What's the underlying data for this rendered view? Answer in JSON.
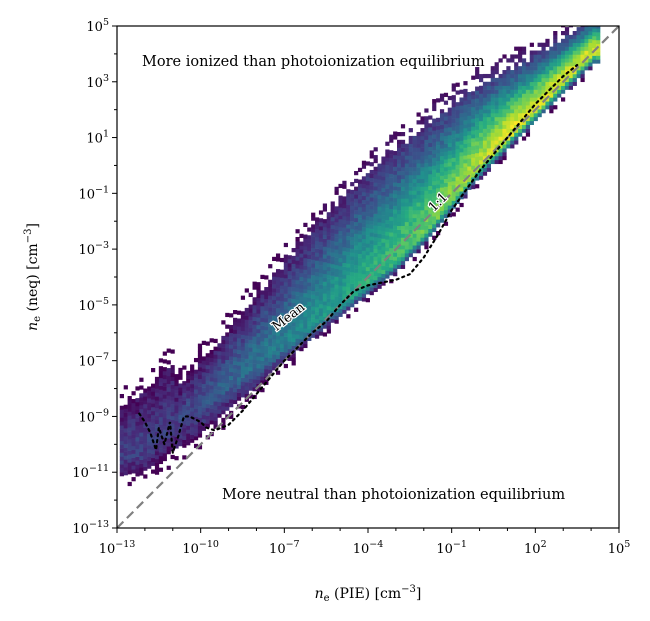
{
  "chart_data": {
    "type": "heatmap",
    "title": "",
    "xlabel": {
      "symbol": "n",
      "subscript": "e",
      "rest": " (PIE) [cm",
      "unit_exp": "−3",
      "close": "]"
    },
    "ylabel": {
      "symbol": "n",
      "subscript": "e",
      "rest": " (neq) [cm",
      "unit_exp": "−3",
      "close": "]"
    },
    "x_scale": "log",
    "y_scale": "log",
    "xlim_log10": [
      -13,
      5
    ],
    "ylim_log10": [
      -13,
      5
    ],
    "x_ticks": [
      {
        "value": -13,
        "base": "10",
        "exp": "−13"
      },
      {
        "value": -10,
        "base": "10",
        "exp": "−10"
      },
      {
        "value": -7,
        "base": "10",
        "exp": "−7"
      },
      {
        "value": -4,
        "base": "10",
        "exp": "−4"
      },
      {
        "value": -1,
        "base": "10",
        "exp": "−1"
      },
      {
        "value": 2,
        "base": "10",
        "exp": "2"
      },
      {
        "value": 5,
        "base": "10",
        "exp": "5"
      }
    ],
    "y_ticks": [
      {
        "value": -13,
        "base": "10",
        "exp": "−13"
      },
      {
        "value": -11,
        "base": "10",
        "exp": "−11"
      },
      {
        "value": -9,
        "base": "10",
        "exp": "−9"
      },
      {
        "value": -7,
        "base": "10",
        "exp": "−7"
      },
      {
        "value": -5,
        "base": "10",
        "exp": "−5"
      },
      {
        "value": -3,
        "base": "10",
        "exp": "−3"
      },
      {
        "value": -1,
        "base": "10",
        "exp": "−1"
      },
      {
        "value": 1,
        "base": "10",
        "exp": "1"
      },
      {
        "value": 3,
        "base": "10",
        "exp": "3"
      },
      {
        "value": 5,
        "base": "10",
        "exp": "5"
      }
    ],
    "colormap": "viridis",
    "density_ridge_log10": [
      [
        -13,
        -10.6
      ],
      [
        -12,
        -10.2
      ],
      [
        -11,
        -9.3
      ],
      [
        -10,
        -8.6
      ],
      [
        -9,
        -7.8
      ],
      [
        -8,
        -7.1
      ],
      [
        -7,
        -6.4
      ],
      [
        -6,
        -5.7
      ],
      [
        -5,
        -5.0
      ],
      [
        -4,
        -4.2
      ],
      [
        -3,
        -3.4
      ],
      [
        -2,
        -2.4
      ],
      [
        -1,
        -1.2
      ],
      [
        0,
        0.0
      ],
      [
        1,
        1.0
      ],
      [
        2,
        2.0
      ],
      [
        3,
        3.0
      ],
      [
        4,
        4.0
      ]
    ],
    "series": [
      {
        "name": "1:1",
        "style": "dashed",
        "color": "#808080",
        "x_log10": [
          -13,
          5
        ],
        "y_log10": [
          -13,
          5
        ]
      },
      {
        "name": "Mean",
        "style": "dotted",
        "color": "#000000",
        "x_log10": [
          -12.2,
          -12.0,
          -11.8,
          -11.6,
          -11.5,
          -11.3,
          -11.1,
          -11.0,
          -10.8,
          -10.6,
          -10.4,
          -10.2,
          -10.0,
          -9.8,
          -9.5,
          -9.0,
          -8.5,
          -8.0,
          -7.5,
          -7.0,
          -6.5,
          -6.0,
          -5.5,
          -5.0,
          -4.5,
          -4.0,
          -3.5,
          -3.0,
          -2.5,
          -2.0,
          -1.5,
          -1.0,
          -0.5,
          0.0,
          0.5,
          1.0,
          1.5,
          2.0,
          2.5,
          3.0,
          3.5
        ],
        "y_log10": [
          -8.9,
          -9.2,
          -9.6,
          -10.2,
          -9.4,
          -10.0,
          -9.2,
          -10.3,
          -9.7,
          -9.0,
          -9.0,
          -9.1,
          -9.2,
          -9.4,
          -9.5,
          -9.3,
          -8.8,
          -8.2,
          -7.6,
          -7.0,
          -6.5,
          -6.0,
          -5.6,
          -5.0,
          -4.5,
          -4.3,
          -4.2,
          -4.1,
          -3.9,
          -3.3,
          -2.5,
          -1.6,
          -0.9,
          -0.2,
          0.4,
          1.0,
          1.6,
          2.2,
          2.7,
          3.2,
          3.6
        ]
      }
    ],
    "annotations": {
      "upper": "More ionized than photoionization equilibrium",
      "lower": "More neutral than photoionization equilibrium",
      "one_to_one": "1:1",
      "mean": "Mean"
    },
    "grid": false,
    "legend": "none"
  }
}
